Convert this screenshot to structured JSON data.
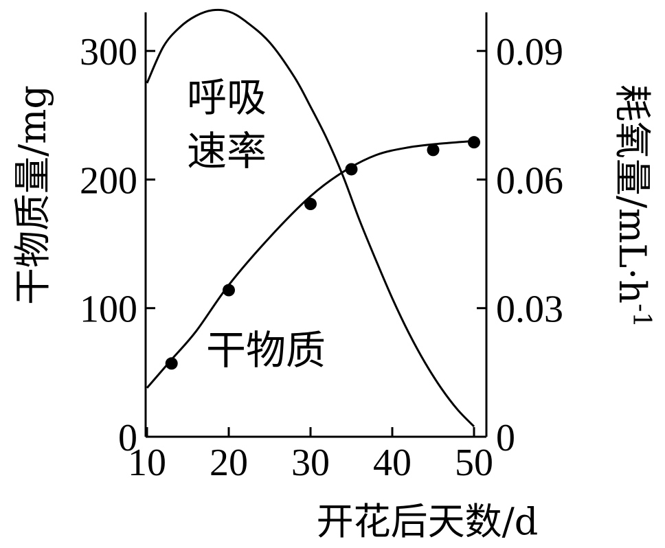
{
  "chart_data": {
    "type": "line",
    "x": {
      "label": "开花后天数/d",
      "range": [
        10,
        50
      ],
      "ticks": [
        10,
        20,
        30,
        40,
        50
      ]
    },
    "y_left": {
      "label": "干物质量/mg",
      "range": [
        0,
        330
      ],
      "ticks": [
        0,
        100,
        200,
        300
      ]
    },
    "y_right": {
      "label": "耗氧量/mL·h-1",
      "range": [
        0,
        0.099
      ],
      "ticks": [
        "0",
        "0.03",
        "0.06",
        "0.09"
      ],
      "tick_values": [
        0,
        0.03,
        0.06,
        0.09
      ]
    },
    "series": [
      {
        "name": "干物质",
        "axis": "left",
        "curve_x": [
          10,
          13,
          16,
          20,
          25,
          30,
          34,
          38,
          42,
          46,
          50
        ],
        "curve_y": [
          38,
          60,
          82,
          118,
          155,
          187,
          206,
          219,
          225,
          228,
          230
        ],
        "points_x": [
          13,
          20,
          30,
          35,
          45,
          50
        ],
        "points_y": [
          57,
          114,
          181,
          208,
          223,
          229
        ]
      },
      {
        "name": "呼吸速率",
        "axis": "right",
        "curve_x": [
          10,
          12,
          14,
          16,
          18,
          20,
          22,
          25,
          28,
          30,
          32,
          34,
          36,
          38,
          40,
          42,
          44,
          46,
          48,
          50
        ],
        "curve_y": [
          0.0825,
          0.091,
          0.0955,
          0.0982,
          0.0995,
          0.0992,
          0.097,
          0.092,
          0.084,
          0.077,
          0.0695,
          0.0607,
          0.0505,
          0.0412,
          0.0323,
          0.0243,
          0.0173,
          0.0113,
          0.0063,
          0.0024
        ]
      }
    ],
    "annotations": [
      {
        "text": [
          "呼吸",
          "速率"
        ]
      },
      {
        "text": [
          "干物质"
        ]
      }
    ],
    "grid": false
  }
}
